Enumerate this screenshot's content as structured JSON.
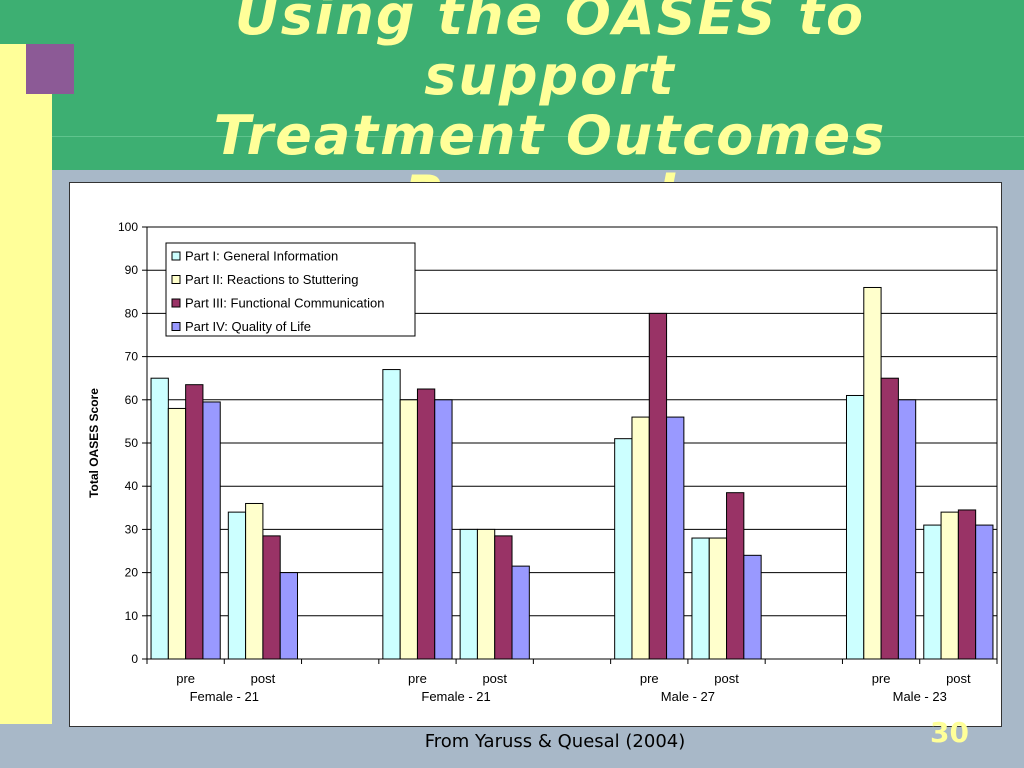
{
  "slide": {
    "title_lines": [
      "Using the OASES to support",
      "Treatment Outcomes",
      "Research"
    ],
    "source_note": "From Yaruss & Quesal (2004)",
    "page_number": "30"
  },
  "colors": {
    "header": "#3daf72",
    "title_text": "#ffff99",
    "side_bar": "#ffff99",
    "accent_square": "#8c5a96",
    "background": "#a8b8c8"
  },
  "chart_data": {
    "type": "bar",
    "ylabel": "Total OASES Score",
    "ylim": [
      0,
      100
    ],
    "y_ticks": [
      0,
      10,
      20,
      30,
      40,
      50,
      60,
      70,
      80,
      90,
      100
    ],
    "grid": "horizontal",
    "legend_position": "top-left",
    "groups": [
      {
        "label": "Female - 21",
        "categories": [
          "pre",
          "post"
        ]
      },
      {
        "label": "Female - 21",
        "categories": [
          "pre",
          "post"
        ]
      },
      {
        "label": "Male - 27",
        "categories": [
          "pre",
          "post"
        ]
      },
      {
        "label": "Male - 23",
        "categories": [
          "pre",
          "post"
        ]
      }
    ],
    "categories": [
      "pre",
      "post",
      "pre",
      "post",
      "pre",
      "post",
      "pre",
      "post"
    ],
    "series": [
      {
        "name": "Part I: General Information",
        "color": "#ccffff",
        "values": [
          65,
          34,
          67,
          30,
          51,
          28,
          61,
          31
        ]
      },
      {
        "name": "Part II: Reactions to Stuttering",
        "color": "#ffffcc",
        "values": [
          58,
          36,
          60,
          30,
          56,
          28,
          86,
          34
        ]
      },
      {
        "name": "Part III: Functional Communication",
        "color": "#993366",
        "values": [
          63.5,
          28.5,
          62.5,
          28.5,
          80,
          38.5,
          65,
          34.5
        ]
      },
      {
        "name": "Part IV: Quality of Life",
        "color": "#9999ff",
        "values": [
          59.5,
          20,
          60,
          21.5,
          56,
          24,
          60,
          31
        ]
      }
    ]
  }
}
